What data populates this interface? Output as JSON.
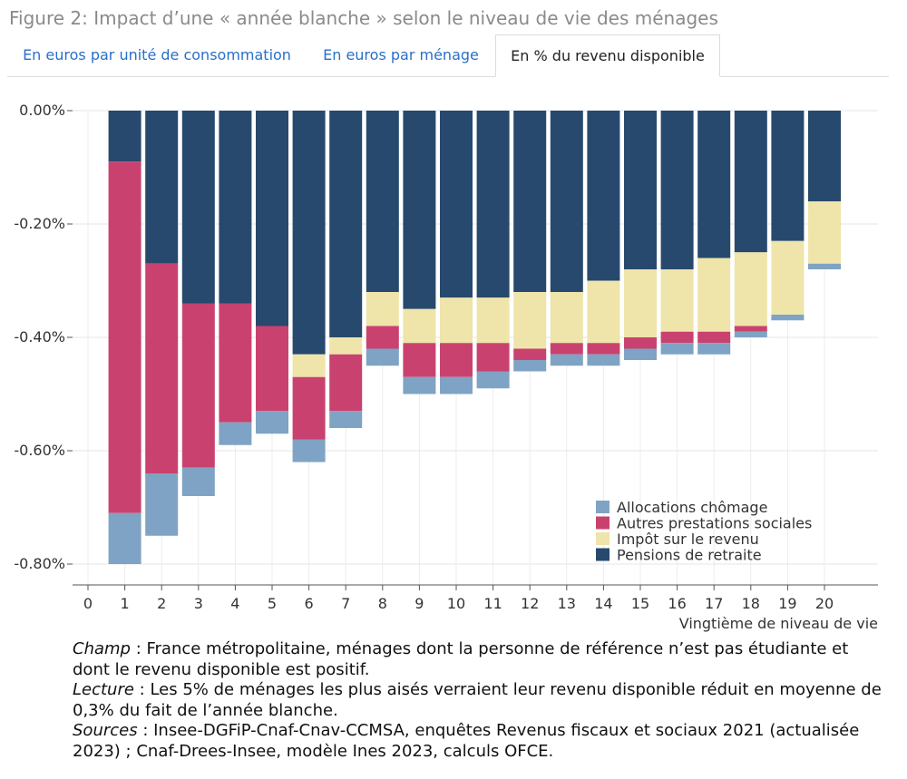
{
  "figure": {
    "title": "Figure 2: Impact d’une « année blanche » selon le niveau de vie des ménages"
  },
  "tabs": [
    {
      "label": "En euros par unité de consommation",
      "active": false
    },
    {
      "label": "En euros par ménage",
      "active": false
    },
    {
      "label": "En % du revenu disponible",
      "active": true
    }
  ],
  "chart_data": {
    "type": "bar",
    "stacked": true,
    "xlabel": "Vingtième de niveau de vie",
    "ylabel": "",
    "ylim": [
      -0.85,
      0.0
    ],
    "yticks": [
      0.0,
      -0.2,
      -0.4,
      -0.6,
      -0.8
    ],
    "ytick_labels": [
      "0.00%",
      "-0.20%",
      "-0.40%",
      "-0.60%",
      "-0.80%"
    ],
    "xlim": [
      0,
      21
    ],
    "xticks": [
      0,
      1,
      2,
      3,
      4,
      5,
      6,
      7,
      8,
      9,
      10,
      11,
      12,
      13,
      14,
      15,
      16,
      17,
      18,
      19,
      20
    ],
    "categories": [
      "1",
      "2",
      "3",
      "4",
      "5",
      "6",
      "7",
      "8",
      "9",
      "10",
      "11",
      "12",
      "13",
      "14",
      "15",
      "16",
      "17",
      "18",
      "19",
      "20"
    ],
    "grid": true,
    "legend_position": "bottom-right",
    "series": [
      {
        "name": "Pensions de retraite",
        "color": "#27496d",
        "values": [
          -0.09,
          -0.27,
          -0.34,
          -0.34,
          -0.38,
          -0.43,
          -0.4,
          -0.32,
          -0.35,
          -0.33,
          -0.33,
          -0.32,
          -0.32,
          -0.3,
          -0.28,
          -0.28,
          -0.26,
          -0.25,
          -0.23,
          -0.16
        ]
      },
      {
        "name": "Impôt sur le revenu",
        "color": "#efe4aa",
        "values": [
          0,
          0,
          0,
          0,
          0,
          -0.04,
          -0.03,
          -0.06,
          -0.06,
          -0.08,
          -0.08,
          -0.1,
          -0.09,
          -0.11,
          -0.12,
          -0.11,
          -0.13,
          -0.13,
          -0.13,
          -0.11
        ]
      },
      {
        "name": "Autres prestations sociales",
        "color": "#c9426f",
        "values": [
          -0.62,
          -0.37,
          -0.29,
          -0.21,
          -0.15,
          -0.11,
          -0.1,
          -0.04,
          -0.06,
          -0.06,
          -0.05,
          -0.02,
          -0.02,
          -0.02,
          -0.02,
          -0.02,
          -0.02,
          -0.01,
          0,
          0
        ]
      },
      {
        "name": "Allocations chômage",
        "color": "#7fa3c4",
        "values": [
          -0.09,
          -0.11,
          -0.05,
          -0.04,
          -0.04,
          -0.04,
          -0.03,
          -0.03,
          -0.03,
          -0.03,
          -0.03,
          -0.02,
          -0.02,
          -0.02,
          -0.02,
          -0.02,
          -0.02,
          -0.01,
          -0.01,
          -0.01
        ]
      }
    ],
    "legend_entries": [
      "Allocations chômage",
      "Autres prestations sociales",
      "Impôt sur le revenu",
      "Pensions de retraite"
    ]
  },
  "notes": {
    "champ_label": "Champ",
    "champ_text": " : France métropolitaine, ménages dont la personne de référence n’est pas étudiante et dont le revenu disponible est positif.",
    "lecture_label": "Lecture",
    "lecture_text": " : Les 5% de ménages les plus aisés verraient leur revenu disponible réduit en moyenne de 0,3% du fait de l’année blanche.",
    "sources_label": "Sources",
    "sources_text": " : Insee-DGFiP-Cnaf-Cnav-CCMSA, enquêtes Revenus fiscaux et sociaux 2021 (actualisée 2023) ; Cnaf-Drees-Insee, modèle Ines 2023, calculs OFCE."
  }
}
